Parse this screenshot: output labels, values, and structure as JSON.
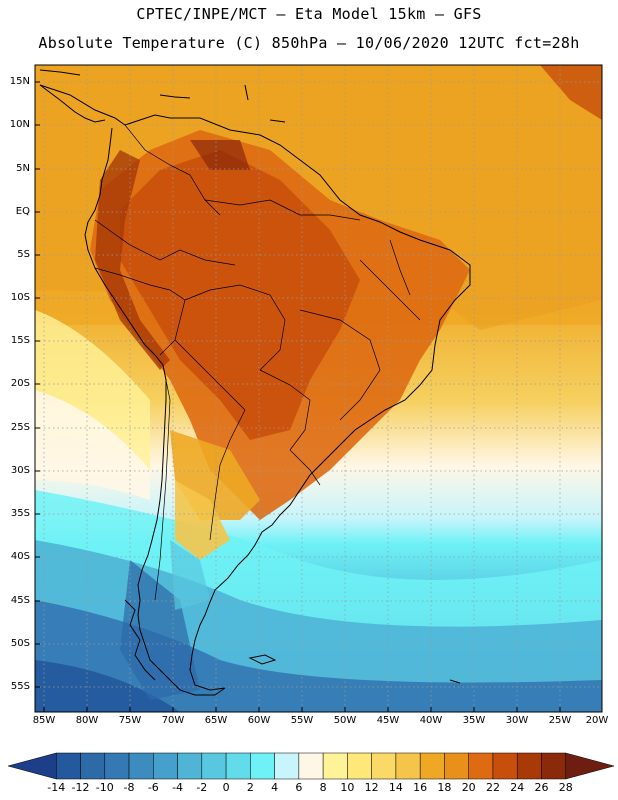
{
  "header": {
    "line1": "CPTEC/INPE/MCT –  Eta Model 15km – GFS",
    "line2": "Absolute Temperature (C) 850hPa – 10/06/2020 12UTC fct=28h"
  },
  "map": {
    "lat_labels": [
      "15N",
      "10N",
      "5N",
      "EQ",
      "5S",
      "10S",
      "15S",
      "20S",
      "25S",
      "30S",
      "35S",
      "40S",
      "45S",
      "50S",
      "55S"
    ],
    "lon_labels": [
      "85W",
      "80W",
      "75W",
      "70W",
      "65W",
      "60W",
      "55W",
      "50W",
      "45W",
      "40W",
      "35W",
      "30W",
      "25W",
      "20W"
    ]
  },
  "colorbar": {
    "labels": [
      "-14",
      "-12",
      "-10",
      "-8",
      "-6",
      "-4",
      "-2",
      "0",
      "2",
      "4",
      "6",
      "8",
      "10",
      "12",
      "14",
      "16",
      "18",
      "20",
      "22",
      "24",
      "26",
      "28"
    ],
    "colors": [
      "#1d3f8a",
      "#24599d",
      "#2d6aa8",
      "#3478b4",
      "#3d8cc0",
      "#46a0cc",
      "#4fb4d6",
      "#58c8e0",
      "#62dcea",
      "#6ef2f6",
      "#c8f4fb",
      "#fff7e6",
      "#fff39a",
      "#ffe87a",
      "#fad966",
      "#f4c54a",
      "#eea824",
      "#e8901a",
      "#de6a12",
      "#c84e0c",
      "#a83a08",
      "#8a2a0a",
      "#6e1e10"
    ]
  }
}
